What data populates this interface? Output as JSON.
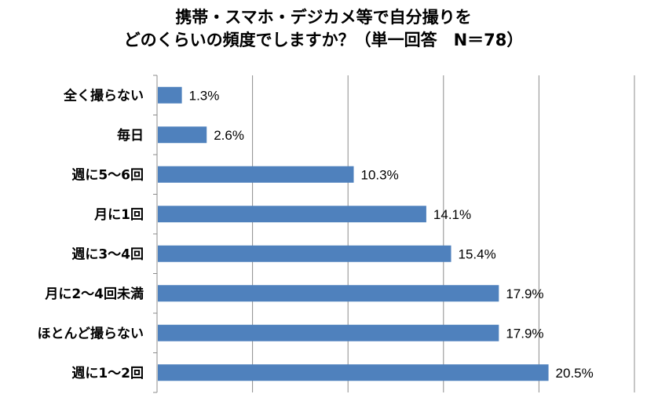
{
  "chart_data": {
    "type": "bar",
    "orientation": "horizontal",
    "title": [
      "携帯・スマホ・デジカメ等で自分撮りを",
      "どのくらいの頻度でしますか？（単一回答　N＝78）"
    ],
    "categories": [
      "全く撮らない",
      "毎日",
      "週に5～6回",
      "月に1回",
      "週に3～4回",
      "月に2～4回未満",
      "ほとんど撮らない",
      "週に1～2回"
    ],
    "values": [
      1.3,
      2.6,
      10.3,
      14.1,
      15.4,
      17.9,
      17.9,
      20.5
    ],
    "value_labels": [
      "1.3%",
      "2.6%",
      "10.3%",
      "14.1%",
      "15.4%",
      "17.9%",
      "17.9%",
      "20.5%"
    ],
    "xlim": [
      0,
      25
    ],
    "x_gridlines": true,
    "x_tick_labels_shown": false,
    "legend": "none",
    "bar_color": "#4F81BD"
  }
}
